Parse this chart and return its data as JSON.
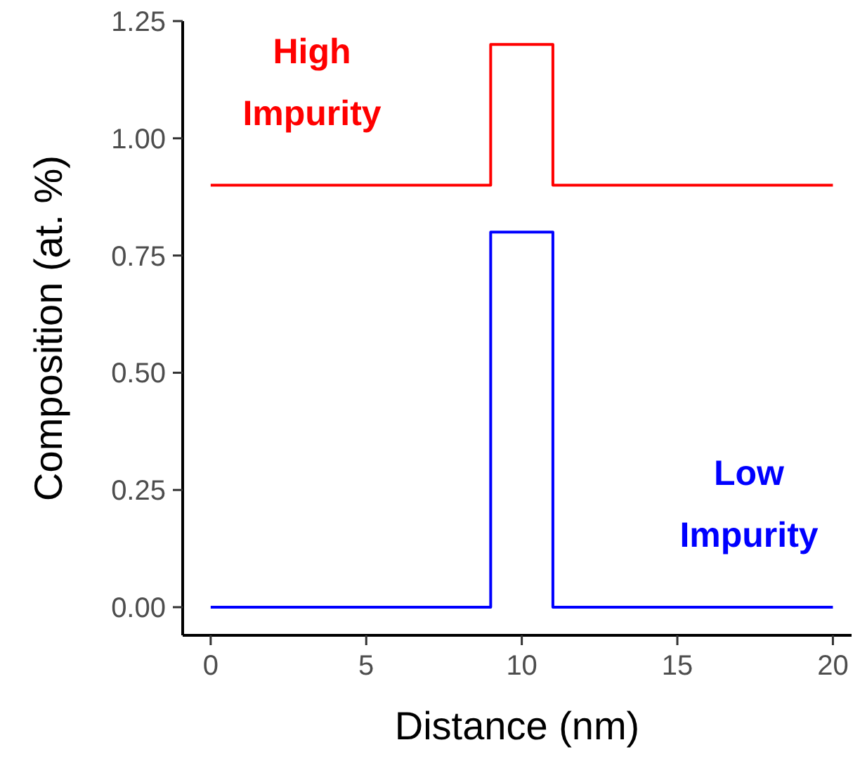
{
  "chart_data": {
    "type": "step",
    "xlabel": "Distance (nm)",
    "ylabel": "Composition (at. %)",
    "xlim": [
      -0.9,
      20.6
    ],
    "ylim": [
      -0.06,
      1.25
    ],
    "xticks": [
      0,
      5,
      10,
      15,
      20
    ],
    "yticks": [
      {
        "value": 0,
        "label": "0.00"
      },
      {
        "value": 0.25,
        "label": "0.25"
      },
      {
        "value": 0.5,
        "label": "0.50"
      },
      {
        "value": 0.75,
        "label": "0.75"
      },
      {
        "value": 1,
        "label": "1.00"
      },
      {
        "value": 1.25,
        "label": "1.25"
      }
    ],
    "grid": false,
    "series": [
      {
        "name": "High Impurity",
        "color": "#ff0000",
        "x": [
          0,
          9,
          11,
          20
        ],
        "values": [
          0.9,
          1.2,
          0.9,
          0.9
        ]
      },
      {
        "name": "Low Impurity",
        "color": "#0000ff",
        "x": [
          0,
          9,
          11,
          20
        ],
        "values": [
          0,
          0.8,
          0,
          0
        ]
      }
    ]
  }
}
